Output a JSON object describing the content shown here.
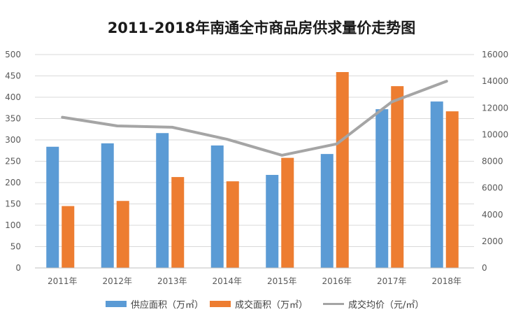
{
  "chart_data": {
    "type": "bar",
    "title": "2011-2018年南通全市商品房供求量价走势图",
    "categories": [
      "2011年",
      "2012年",
      "2013年",
      "2014年",
      "2015年",
      "2016年",
      "2017年",
      "2018年"
    ],
    "series": [
      {
        "name": "供应面积（万㎡）",
        "type": "bar",
        "axis": "left",
        "color": "#5B9BD5",
        "values": [
          284,
          292,
          316,
          287,
          218,
          267,
          372,
          390
        ]
      },
      {
        "name": "成交面积（万㎡）",
        "type": "bar",
        "axis": "left",
        "color": "#ED7D31",
        "values": [
          145,
          157,
          213,
          203,
          258,
          459,
          426,
          367
        ]
      },
      {
        "name": "成交均价（元/㎡）",
        "type": "line",
        "axis": "right",
        "color": "#A5A5A5",
        "values": [
          11300,
          10650,
          10550,
          9650,
          8450,
          9300,
          12450,
          14000
        ]
      }
    ],
    "y_left": {
      "min": 0,
      "max": 500,
      "step": 50,
      "ticks": [
        "0",
        "50",
        "100",
        "150",
        "200",
        "250",
        "300",
        "350",
        "400",
        "450",
        "500"
      ]
    },
    "y_right": {
      "min": 0,
      "max": 16000,
      "step": 2000,
      "ticks": [
        "0",
        "2000",
        "4000",
        "6000",
        "8000",
        "10000",
        "12000",
        "14000",
        "16000"
      ]
    },
    "grid": true,
    "legend": "bottom"
  }
}
